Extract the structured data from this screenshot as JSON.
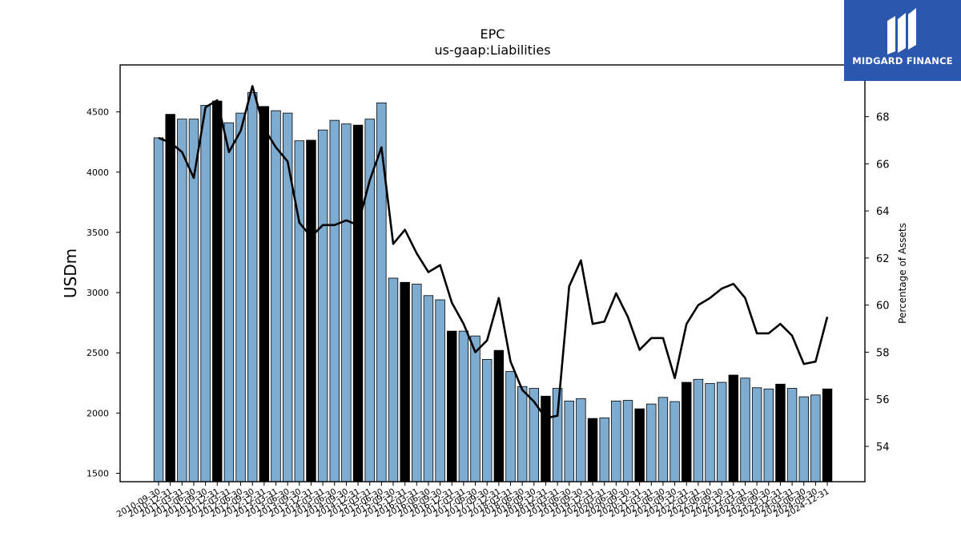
{
  "brand": {
    "name": "MIDGARD FINANCE",
    "bg_color": "#2b58ae"
  },
  "chart_data": {
    "type": "bar",
    "title": "EPC",
    "subtitle": "us-gaap:Liabilities",
    "ylabel": "USDm",
    "y2label": "Percentage of Assets",
    "ylim": [
      1430,
      4890
    ],
    "y2lim": [
      52.5,
      70.2
    ],
    "yticks": [
      1500,
      2000,
      2500,
      3000,
      3500,
      4000,
      4500
    ],
    "y2ticks": [
      54,
      56,
      58,
      60,
      62,
      64,
      66,
      68
    ],
    "colors": {
      "bar": "#7eabd0",
      "bar_fiscal_year_end": "#000000",
      "line": "#000000"
    },
    "categories": [
      "2010-09-30",
      "2010-12-31",
      "2011-03-31",
      "2011-06-30",
      "2011-09-30",
      "2011-12-31",
      "2012-03-31",
      "2012-06-30",
      "2012-09-30",
      "2012-12-31",
      "2013-03-31",
      "2013-06-30",
      "2013-09-30",
      "2013-12-31",
      "2014-03-31",
      "2014-06-30",
      "2014-09-30",
      "2014-12-31",
      "2015-03-31",
      "2015-06-30",
      "2015-09-30",
      "2015-12-31",
      "2016-03-31",
      "2016-06-30",
      "2016-09-30",
      "2016-12-31",
      "2017-03-31",
      "2017-06-30",
      "2017-09-30",
      "2017-12-31",
      "2018-03-31",
      "2018-06-30",
      "2018-09-30",
      "2018-12-31",
      "2019-03-31",
      "2019-06-30",
      "2019-09-30",
      "2019-12-31",
      "2020-03-31",
      "2020-06-30",
      "2020-09-30",
      "2020-12-31",
      "2021-03-31",
      "2021-06-30",
      "2021-09-30",
      "2021-12-31",
      "2022-03-31",
      "2022-06-30",
      "2022-09-30",
      "2022-12-31",
      "2023-03-31",
      "2023-06-30",
      "2023-09-30",
      "2023-12-31",
      "2024-03-31",
      "2024-06-30",
      "2024-09-30",
      "2024-12-31"
    ],
    "series": [
      {
        "type": "bar",
        "values": [
          4285,
          4480,
          4440,
          4440,
          4555,
          4590,
          4410,
          4490,
          4660,
          4545,
          4510,
          4490,
          4260,
          4265,
          4350,
          4430,
          4400,
          4390,
          4440,
          4575,
          3120,
          3085,
          3070,
          2975,
          2940,
          2680,
          2680,
          2640,
          2445,
          2520,
          2345,
          2220,
          2205,
          2140,
          2205,
          2100,
          2120,
          1955,
          1960,
          2100,
          2105,
          2035,
          2075,
          2130,
          2095,
          2255,
          2280,
          2245,
          2255,
          2315,
          2290,
          2210,
          2200,
          2240,
          2205,
          2135,
          2150,
          2200
        ],
        "highlight": [
          false,
          true,
          false,
          false,
          false,
          true,
          false,
          false,
          false,
          true,
          false,
          false,
          false,
          true,
          false,
          false,
          false,
          true,
          false,
          false,
          false,
          true,
          false,
          false,
          false,
          true,
          false,
          false,
          false,
          true,
          false,
          false,
          false,
          true,
          false,
          false,
          false,
          true,
          false,
          false,
          false,
          true,
          false,
          false,
          false,
          true,
          false,
          false,
          false,
          true,
          false,
          false,
          false,
          true,
          false,
          false,
          false,
          true
        ]
      },
      {
        "type": "line",
        "axis": "right",
        "values": [
          67.1,
          66.9,
          66.5,
          65.4,
          68.4,
          68.7,
          66.5,
          67.4,
          69.3,
          67.5,
          66.7,
          66.1,
          63.5,
          62.9,
          63.4,
          63.4,
          63.6,
          63.4,
          65.3,
          66.7,
          62.6,
          63.2,
          62.2,
          61.4,
          61.7,
          60.1,
          59.2,
          58.0,
          58.5,
          60.3,
          57.6,
          56.4,
          55.9,
          55.2,
          55.3,
          60.8,
          61.9,
          59.2,
          59.3,
          60.5,
          59.5,
          58.1,
          58.6,
          58.6,
          56.9,
          59.2,
          60.0,
          60.3,
          60.7,
          60.9,
          60.3,
          58.8,
          58.8,
          59.2,
          58.7,
          57.5,
          57.6,
          59.5
        ]
      }
    ]
  }
}
